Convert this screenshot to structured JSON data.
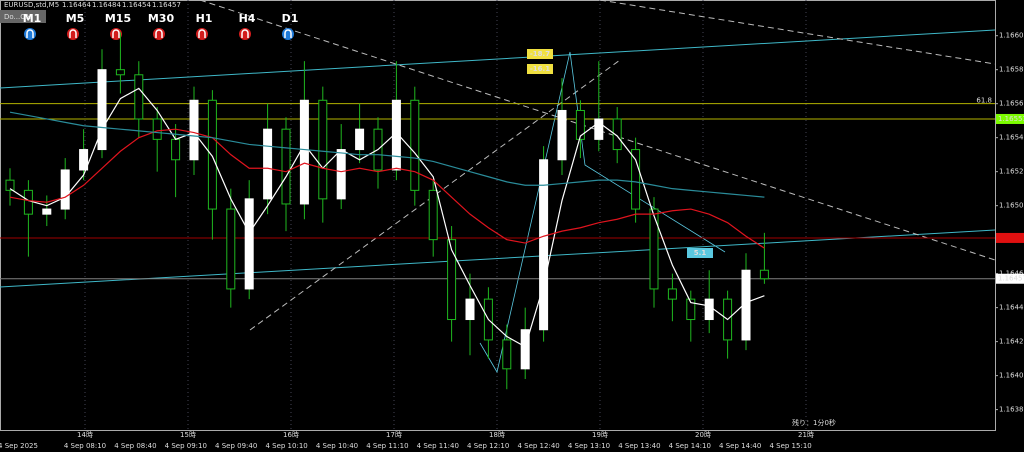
{
  "header": {
    "symbol": "EURUSD,std,M5",
    "ohlc": [
      1.16464,
      1.16484,
      1.16454,
      1.16457
    ],
    "toggle": "Do...ON"
  },
  "buttons": [
    {
      "label": "M1",
      "color": "#1f7ad8"
    },
    {
      "label": "M5",
      "color": "#d21c1c"
    },
    {
      "label": "M15",
      "color": "#d21c1c"
    },
    {
      "label": "M30",
      "color": "#d21c1c"
    },
    {
      "label": "H1",
      "color": "#d21c1c"
    },
    {
      "label": "H4",
      "color": "#d21c1c"
    },
    {
      "label": "D1",
      "color": "#1f7ad8"
    }
  ],
  "chart_data": {
    "type": "candlestick",
    "ylim": [
      1.16368,
      1.16621
    ],
    "yticks": [
      {
        "value": 1.166,
        "label": "1.16600"
      },
      {
        "value": 1.1658,
        "label": "1.16580"
      },
      {
        "value": 1.1656,
        "label": "1.16560"
      },
      {
        "value": 1.1654,
        "label": "1.16540"
      },
      {
        "value": 1.1652,
        "label": "1.16520"
      },
      {
        "value": 1.165,
        "label": "1.16500"
      },
      {
        "value": 1.1648,
        "label": "1.16480"
      },
      {
        "value": 1.1646,
        "label": "1.16460"
      },
      {
        "value": 1.1644,
        "label": "1.16440"
      },
      {
        "value": 1.1642,
        "label": "1.16420"
      },
      {
        "value": 1.164,
        "label": "1.16400"
      },
      {
        "value": 1.1638,
        "label": "1.16380"
      }
    ],
    "time_labels": [
      "4 Sep 2025",
      "4 Sep 08:10",
      "4 Sep 08:40",
      "4 Sep 09:10",
      "4 Sep 09:40",
      "4 Sep 10:10",
      "4 Sep 10:40",
      "4 Sep 11:10",
      "4 Sep 11:40",
      "4 Sep 12:10",
      "4 Sep 12:40",
      "4 Sep 13:10",
      "4 Sep 13:40",
      "4 Sep 14:10",
      "4 Sep 14:40",
      "4 Sep 15:10"
    ],
    "hour_labels": [
      "14時",
      "15時",
      "16時",
      "17時",
      "18時",
      "19時",
      "20時",
      "21時"
    ],
    "open": [
      1.16515,
      1.16509,
      1.16495,
      1.16498,
      1.16521,
      1.16533,
      1.1658,
      1.16577,
      1.16551,
      1.16539,
      1.16527,
      1.16562,
      1.16498,
      1.16451,
      1.16504,
      1.16545,
      1.16501,
      1.16562,
      1.16504,
      1.16533,
      1.16545,
      1.16521,
      1.16562,
      1.16509,
      1.1648,
      1.16433,
      1.16445,
      1.16421,
      1.16404,
      1.16427,
      1.16527,
      1.16556,
      1.16539,
      1.16551,
      1.16533,
      1.16498,
      1.16451,
      1.16445,
      1.16433,
      1.16445,
      1.16421,
      1.16462
    ],
    "high": [
      1.16522,
      1.16515,
      1.16506,
      1.16528,
      1.16545,
      1.16592,
      1.16602,
      1.16585,
      1.16558,
      1.16548,
      1.1657,
      1.16568,
      1.1651,
      1.16515,
      1.1656,
      1.16552,
      1.16585,
      1.1657,
      1.16548,
      1.1656,
      1.16552,
      1.16585,
      1.1657,
      1.16515,
      1.16488,
      1.1646,
      1.16452,
      1.1643,
      1.1644,
      1.16535,
      1.16575,
      1.16562,
      1.16585,
      1.16558,
      1.1654,
      1.16505,
      1.1646,
      1.1645,
      1.16462,
      1.1645,
      1.16472,
      1.16484
    ],
    "low": [
      1.165,
      1.1647,
      1.16488,
      1.16492,
      1.16515,
      1.16528,
      1.16566,
      1.1654,
      1.1652,
      1.16505,
      1.16518,
      1.1648,
      1.1644,
      1.16445,
      1.16495,
      1.16485,
      1.16492,
      1.1649,
      1.16498,
      1.16525,
      1.1651,
      1.16515,
      1.165,
      1.1647,
      1.1642,
      1.16412,
      1.1641,
      1.16392,
      1.16398,
      1.1642,
      1.16518,
      1.16528,
      1.16532,
      1.16525,
      1.1649,
      1.1644,
      1.16432,
      1.1642,
      1.16425,
      1.1641,
      1.16415,
      1.16454
    ],
    "close": [
      1.16509,
      1.16495,
      1.16498,
      1.16521,
      1.16533,
      1.1658,
      1.16577,
      1.16551,
      1.16539,
      1.16527,
      1.16562,
      1.16498,
      1.16451,
      1.16504,
      1.16545,
      1.16501,
      1.16562,
      1.16504,
      1.16533,
      1.16545,
      1.16521,
      1.16562,
      1.16509,
      1.1648,
      1.16433,
      1.16445,
      1.16421,
      1.16404,
      1.16427,
      1.16527,
      1.16556,
      1.16539,
      1.16551,
      1.16533,
      1.16498,
      1.16451,
      1.16445,
      1.16433,
      1.16445,
      1.16421,
      1.16462,
      1.16457
    ],
    "ma": [
      {
        "color": "#ffffff",
        "values": [
          1.1651,
          1.16503,
          1.165,
          1.16505,
          1.16518,
          1.16545,
          1.16563,
          1.16569,
          1.16556,
          1.16539,
          1.16543,
          1.16529,
          1.16504,
          1.16484,
          1.165,
          1.16517,
          1.16536,
          1.16522,
          1.16533,
          1.16527,
          1.16533,
          1.16543,
          1.16531,
          1.16517,
          1.16474,
          1.16453,
          1.16433,
          1.16423,
          1.16417,
          1.16453,
          1.16503,
          1.16541,
          1.16549,
          1.16541,
          1.16527,
          1.16494,
          1.16465,
          1.16443,
          1.16441,
          1.16433,
          1.16443,
          1.16447
        ]
      },
      {
        "color": "#e0141e",
        "values": [
          1.16505,
          1.16503,
          1.16502,
          1.16505,
          1.16512,
          1.16522,
          1.16532,
          1.1654,
          1.16544,
          1.16545,
          1.16543,
          1.1654,
          1.1653,
          1.16522,
          1.16522,
          1.1652,
          1.16525,
          1.16522,
          1.1652,
          1.16522,
          1.1652,
          1.16522,
          1.1652,
          1.16515,
          1.16505,
          1.16495,
          1.16487,
          1.1648,
          1.16478,
          1.16482,
          1.16485,
          1.16487,
          1.1649,
          1.16492,
          1.16495,
          1.16495,
          1.16497,
          1.16498,
          1.16495,
          1.1649,
          1.16482,
          1.16475
        ]
      },
      {
        "color": "#2a8c9a",
        "values": [
          1.16555,
          1.16553,
          1.16551,
          1.16549,
          1.16547,
          1.16546,
          1.16545,
          1.16544,
          1.16543,
          1.16542,
          1.16541,
          1.1654,
          1.16538,
          1.16536,
          1.16535,
          1.16534,
          1.16533,
          1.16532,
          1.16531,
          1.1653,
          1.1653,
          1.16529,
          1.16528,
          1.16526,
          1.16523,
          1.1652,
          1.16517,
          1.16514,
          1.16512,
          1.16512,
          1.16513,
          1.16514,
          1.16515,
          1.16515,
          1.16514,
          1.16512,
          1.1651,
          1.16509,
          1.16508,
          1.16507,
          1.16506,
          1.16505
        ]
      }
    ],
    "levels": [
      {
        "value": 1.1656,
        "color": "#b3b300",
        "tag": "61.8"
      },
      {
        "value": 1.16551,
        "color": "#b3b300",
        "label": "1.16551",
        "label_color": "#7cfc00"
      },
      {
        "value": 1.16481,
        "color": "#a00000",
        "label_color": "#e01010"
      },
      {
        "value": 1.16457,
        "color": "#808080",
        "label": "1.16457",
        "label_color": "#ffffff"
      }
    ],
    "annotations": [
      "-18.7",
      "-16.1",
      "5.1"
    ],
    "countdown": "残り：1分0秒"
  }
}
